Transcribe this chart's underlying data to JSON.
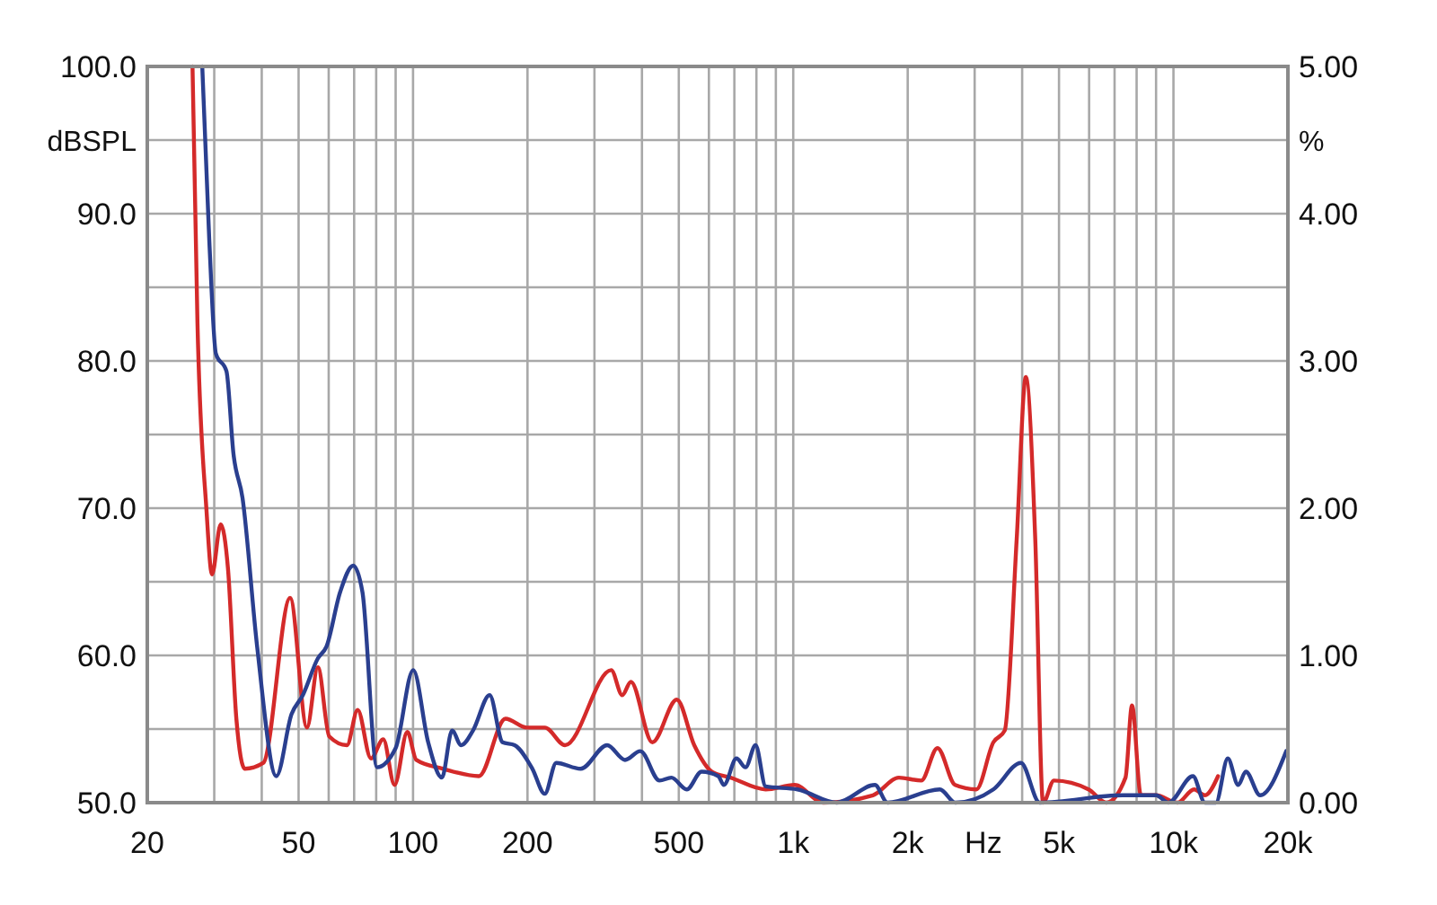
{
  "chart_data": {
    "type": "line",
    "xlabel": "Hz",
    "ylabel": "dBSPL",
    "y2label": "%",
    "log": "x",
    "grid": true,
    "line_style": "solid",
    "xlim": [
      20,
      20000
    ],
    "xticks": [
      20,
      {
        "value": 30,
        "label": null
      },
      {
        "value": 40,
        "label": null
      },
      50,
      {
        "value": 60,
        "label": null
      },
      {
        "value": 70,
        "label": null
      },
      {
        "value": 80,
        "label": null
      },
      {
        "value": 90,
        "label": null
      },
      100,
      200,
      {
        "value": 300,
        "label": null
      },
      {
        "value": 400,
        "label": null
      },
      500,
      {
        "value": 600,
        "label": null
      },
      {
        "value": 700,
        "label": null
      },
      {
        "value": 800,
        "label": null
      },
      {
        "value": 900,
        "label": null
      },
      {
        "value": 1000,
        "label": "1k"
      },
      {
        "value": 2000,
        "label": "2k"
      },
      {
        "value": 3000,
        "label": null
      },
      {
        "value": 4000,
        "label": null
      },
      {
        "value": 5000,
        "label": "5k"
      },
      {
        "value": 6000,
        "label": null
      },
      {
        "value": 7000,
        "label": null
      },
      {
        "value": 8000,
        "label": null
      },
      {
        "value": 9000,
        "label": null
      },
      {
        "value": 10000,
        "label": "10k"
      },
      {
        "value": 20000,
        "label": "20k"
      }
    ],
    "ylim": [
      50,
      100
    ],
    "yticks": [
      {
        "value": 50,
        "label": "50.0"
      },
      {
        "value": 55,
        "label": null
      },
      {
        "value": 60,
        "label": "60.0"
      },
      {
        "value": 65,
        "label": null
      },
      {
        "value": 70,
        "label": "70.0"
      },
      {
        "value": 75,
        "label": null
      },
      {
        "value": 80,
        "label": "80.0"
      },
      {
        "value": 85,
        "label": null
      },
      {
        "value": 90,
        "label": "90.0"
      },
      {
        "value": 95,
        "label": null
      },
      {
        "value": 100,
        "label": "100.0"
      }
    ],
    "y2lim": [
      0,
      5
    ],
    "y2ticks": [
      {
        "value": 0,
        "label": "0.00"
      },
      {
        "value": 1,
        "label": "1.00"
      },
      {
        "value": 2,
        "label": "2.00"
      },
      {
        "value": 3,
        "label": "3.00"
      },
      {
        "value": 4,
        "label": "4.00"
      },
      {
        "value": 5,
        "label": "5.00"
      }
    ],
    "series": [
      {
        "color": "#d42a2a",
        "axis": "y2",
        "x": [
          26.3,
          27.1,
          28.6,
          29.6,
          31.2,
          32.6,
          34.3,
          36.1,
          40.4,
          47.5,
          52.6,
          56.2,
          60.2,
          67,
          71.5,
          77.5,
          83.5,
          89.4,
          96.6,
          102,
          120,
          149,
          175,
          199,
          222,
          251,
          332,
          355,
          374,
          426,
          494,
          549,
          611,
          684,
          846,
          1008,
          1200,
          1620,
          1896,
          2170,
          2395,
          2665,
          3030,
          3360,
          3600,
          3870,
          4090,
          4330,
          4540,
          4850,
          5980,
          6660,
          7480,
          7780,
          8210,
          9000,
          10250,
          11330,
          12100,
          13100
        ],
        "values": [
          5.0,
          3.26,
          2.0,
          1.55,
          1.89,
          1.59,
          0.57,
          0.23,
          0.27,
          1.39,
          0.51,
          0.92,
          0.45,
          0.39,
          0.63,
          0.3,
          0.43,
          0.12,
          0.48,
          0.29,
          0.23,
          0.18,
          0.57,
          0.51,
          0.51,
          0.39,
          0.9,
          0.73,
          0.82,
          0.41,
          0.7,
          0.39,
          0.21,
          0.17,
          0.09,
          0.12,
          0.0,
          0.05,
          0.17,
          0.15,
          0.37,
          0.12,
          0.09,
          0.41,
          0.49,
          1.79,
          2.89,
          1.79,
          0.0,
          0.15,
          0.09,
          0.0,
          0.17,
          0.66,
          0.05,
          0.05,
          0.0,
          0.09,
          0.05,
          0.18
        ]
      },
      {
        "color": "#2a3f8f",
        "axis": "y2",
        "x": [
          27.9,
          29.1,
          30.3,
          32.3,
          33.7,
          35.6,
          38.9,
          43.7,
          47.9,
          51.3,
          56.2,
          59.2,
          64.3,
          69.6,
          73.6,
          80.4,
          90,
          100.1,
          109.6,
          119.1,
          126.7,
          133.8,
          143.8,
          159,
          172,
          185,
          206,
          222,
          238,
          276,
          324,
          361,
          396,
          445,
          478,
          525,
          574,
          635,
          657,
          709,
          749,
          796,
          846,
          1026,
          1300,
          1640,
          1770,
          2430,
          2670,
          3360,
          3970,
          4450,
          7360,
          9000,
          9700,
          11250,
          12100,
          12930,
          13900,
          14800,
          15500,
          16900,
          19800
        ],
        "values": [
          5.0,
          3.83,
          3.05,
          2.93,
          2.37,
          2.07,
          1.06,
          0.18,
          0.6,
          0.73,
          0.98,
          1.06,
          1.43,
          1.61,
          1.43,
          0.24,
          0.37,
          0.9,
          0.41,
          0.17,
          0.49,
          0.39,
          0.49,
          0.73,
          0.41,
          0.39,
          0.23,
          0.06,
          0.27,
          0.23,
          0.39,
          0.29,
          0.35,
          0.15,
          0.17,
          0.09,
          0.21,
          0.18,
          0.12,
          0.3,
          0.24,
          0.39,
          0.11,
          0.09,
          0.0,
          0.12,
          0.0,
          0.09,
          0.0,
          0.09,
          0.27,
          0.0,
          0.05,
          0.05,
          0.0,
          0.18,
          0.0,
          0.0,
          0.3,
          0.12,
          0.21,
          0.05,
          0.35
        ]
      }
    ]
  }
}
